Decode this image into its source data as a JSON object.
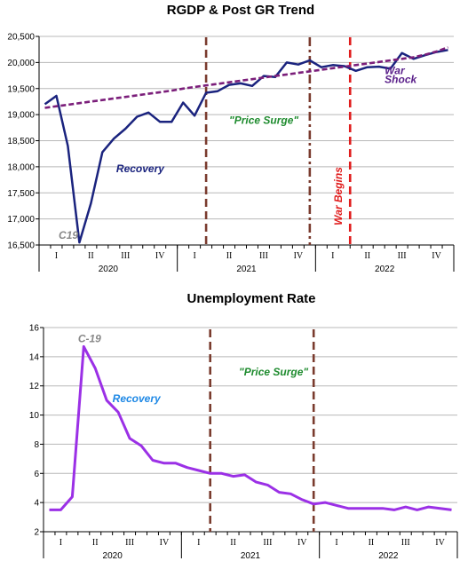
{
  "chart_data": [
    {
      "type": "line",
      "title": "RGDP & Post GR Trend",
      "ylim": [
        16500,
        20500
      ],
      "yticks": [
        "16,500",
        "17,000",
        "17,500",
        "18,000",
        "18,500",
        "19,000",
        "19,500",
        "20,000",
        "20,500"
      ],
      "ytick_values": [
        16500,
        17000,
        17500,
        18000,
        18500,
        19000,
        19500,
        20000,
        20500
      ],
      "quarters": [
        "I",
        "II",
        "III",
        "IV",
        "I",
        "II",
        "III",
        "IV",
        "I",
        "II",
        "III",
        "IV"
      ],
      "years": [
        "2020",
        "2021",
        "2022"
      ],
      "n_months": 36,
      "series": [
        {
          "color": "#1a237e",
          "values": [
            19200,
            19360,
            18400,
            16550,
            17300,
            18280,
            18540,
            18730,
            18960,
            19040,
            18860,
            18860,
            19230,
            18980,
            19420,
            19450,
            19570,
            19600,
            19550,
            19740,
            19720,
            20000,
            19960,
            20040,
            19910,
            19950,
            19930,
            19840,
            19910,
            19920,
            19880,
            20180,
            20070,
            20140,
            20200,
            20240
          ]
        },
        {
          "color": "#7b1e7a",
          "dashed": true,
          "values": [
            19130,
            19160,
            19190,
            19220,
            19250,
            19280,
            19310,
            19340,
            19370,
            19400,
            19430,
            19460,
            19500,
            19530,
            19560,
            19590,
            19620,
            19650,
            19680,
            19710,
            19740,
            19770,
            19800,
            19830,
            19860,
            19890,
            19920,
            19950,
            19980,
            20010,
            20040,
            20070,
            20100,
            20150,
            20210,
            20290
          ]
        }
      ],
      "vlines": [
        {
          "color": "#7a3b2e",
          "style": "dash",
          "at": 14.5
        },
        {
          "color": "#7a3b2e",
          "style": "dashdot",
          "at": 23.5
        },
        {
          "color": "#e01c1c",
          "style": "dash",
          "at": 27.0
        }
      ],
      "annotations": [
        {
          "text": "Recovery",
          "color": "#1a237e",
          "x": 6.2,
          "y": 17900
        },
        {
          "text": "C19",
          "color": "#888888",
          "x": 1.2,
          "y": 16620
        },
        {
          "text": "\"Price Surge\"",
          "color": "#1e8b2e",
          "x": 16.0,
          "y": 18820
        },
        {
          "text": "War",
          "color": "#5a1f8a",
          "x": 29.5,
          "y": 19780
        },
        {
          "text": "Shock",
          "color": "#5a1f8a",
          "x": 29.5,
          "y": 19610
        }
      ],
      "rotated_annotation": {
        "text": "War Begins",
        "color": "#e01c1c"
      }
    },
    {
      "type": "line",
      "title": "Unemployment Rate",
      "ylim": [
        2,
        16
      ],
      "yticks": [
        "2",
        "4",
        "6",
        "8",
        "10",
        "12",
        "14",
        "16"
      ],
      "ytick_values": [
        2,
        4,
        6,
        8,
        10,
        12,
        14,
        16
      ],
      "quarters": [
        "I",
        "II",
        "III",
        "IV",
        "I",
        "II",
        "III",
        "IV",
        "I",
        "II",
        "III",
        "IV"
      ],
      "years": [
        "2020",
        "2021",
        "2022"
      ],
      "n_months": 36,
      "series": [
        {
          "color": "#9b30e6",
          "values": [
            3.5,
            3.5,
            4.4,
            14.7,
            13.2,
            11.0,
            10.2,
            8.4,
            7.9,
            6.9,
            6.7,
            6.7,
            6.4,
            6.2,
            6.0,
            6.0,
            5.8,
            5.9,
            5.4,
            5.2,
            4.7,
            4.6,
            4.2,
            3.9,
            4.0,
            3.8,
            3.6,
            3.6,
            3.6,
            3.6,
            3.5,
            3.7,
            3.5,
            3.7,
            3.6,
            3.5
          ]
        }
      ],
      "vlines": [
        {
          "color": "#7a3b2e",
          "style": "dash",
          "at": 14.5
        },
        {
          "color": "#7a3b2e",
          "style": "dash",
          "at": 23.5
        }
      ],
      "annotations": [
        {
          "text": "C-19",
          "color": "#888888",
          "x": 2.5,
          "y": 15.0
        },
        {
          "text": "Recovery",
          "color": "#1e88e5",
          "x": 5.5,
          "y": 10.9
        },
        {
          "text": "\"Price Surge\"",
          "color": "#1e8b2e",
          "x": 16.5,
          "y": 12.7
        }
      ]
    }
  ]
}
